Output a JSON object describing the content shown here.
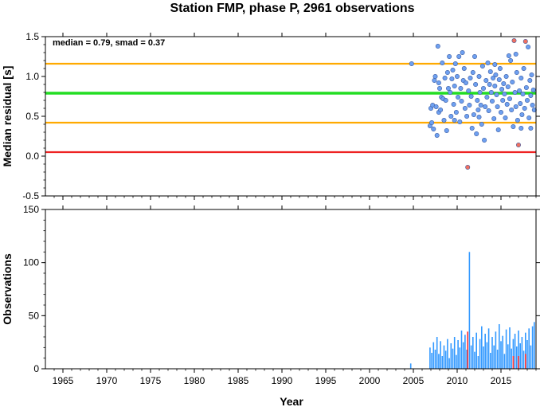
{
  "title": "Station FMP, phase P, 2961 observations",
  "colors": {
    "normal_point": "#6ea0f0",
    "outlier_point": "#f07060",
    "median_line": "#22dd22",
    "smad_line": "#ffaa00",
    "zero_line": "#ee2222",
    "bar": "#3399ff",
    "bar_highlight": "#ff3333"
  },
  "chart_data": [
    {
      "type": "scatter",
      "ylabel": "Median residual [s]",
      "annotation": "median = 0.79, smad = 0.37",
      "xlim": [
        1963,
        2019
      ],
      "ylim": [
        -0.5,
        1.5
      ],
      "yticks": [
        "-0.5",
        "0.0",
        "0.5",
        "1.0",
        "1.5"
      ],
      "hlines": [
        {
          "y": 1.16,
          "role": "upper-smad"
        },
        {
          "y": 0.79,
          "role": "median"
        },
        {
          "y": 0.42,
          "role": "lower-smad"
        },
        {
          "y": 0.05,
          "role": "zero"
        }
      ],
      "points": [
        {
          "x": 2004.8,
          "y": 1.16
        },
        {
          "x": 2006.9,
          "y": 0.38
        },
        {
          "x": 2007.0,
          "y": 0.6
        },
        {
          "x": 2007.1,
          "y": 0.42
        },
        {
          "x": 2007.2,
          "y": 0.64
        },
        {
          "x": 2007.3,
          "y": 0.34
        },
        {
          "x": 2007.4,
          "y": 0.95
        },
        {
          "x": 2007.5,
          "y": 1.0
        },
        {
          "x": 2007.6,
          "y": 0.62
        },
        {
          "x": 2007.7,
          "y": 0.26
        },
        {
          "x": 2007.8,
          "y": 1.38
        },
        {
          "x": 2007.9,
          "y": 0.55
        },
        {
          "x": 2008.0,
          "y": 0.85
        },
        {
          "x": 2008.1,
          "y": 0.58
        },
        {
          "x": 2008.2,
          "y": 0.74
        },
        {
          "x": 2008.3,
          "y": 1.17
        },
        {
          "x": 2008.4,
          "y": 0.72
        },
        {
          "x": 2008.5,
          "y": 0.45
        },
        {
          "x": 2008.6,
          "y": 0.98
        },
        {
          "x": 2008.7,
          "y": 0.7
        },
        {
          "x": 2008.8,
          "y": 0.32
        },
        {
          "x": 2008.9,
          "y": 1.05
        },
        {
          "x": 2009.0,
          "y": 0.85
        },
        {
          "x": 2009.1,
          "y": 1.25
        },
        {
          "x": 2009.2,
          "y": 0.8
        },
        {
          "x": 2009.3,
          "y": 0.5
        },
        {
          "x": 2009.4,
          "y": 0.97
        },
        {
          "x": 2009.5,
          "y": 1.08
        },
        {
          "x": 2009.6,
          "y": 0.65
        },
        {
          "x": 2009.7,
          "y": 0.88
        },
        {
          "x": 2009.8,
          "y": 1.16
        },
        {
          "x": 2009.9,
          "y": 0.55
        },
        {
          "x": 2010.0,
          "y": 1.0
        },
        {
          "x": 2010.1,
          "y": 0.74
        },
        {
          "x": 2010.2,
          "y": 1.25
        },
        {
          "x": 2010.3,
          "y": 0.43
        },
        {
          "x": 2010.4,
          "y": 0.85
        },
        {
          "x": 2010.5,
          "y": 0.69
        },
        {
          "x": 2010.6,
          "y": 1.3
        },
        {
          "x": 2010.7,
          "y": 0.95
        },
        {
          "x": 2010.8,
          "y": 1.1
        },
        {
          "x": 2010.9,
          "y": 0.6
        },
        {
          "x": 2011.0,
          "y": 0.92
        },
        {
          "x": 2011.1,
          "y": 0.5
        },
        {
          "x": 2011.2,
          "y": -0.14
        },
        {
          "x": 2011.3,
          "y": 0.82
        },
        {
          "x": 2011.4,
          "y": 0.64
        },
        {
          "x": 2011.5,
          "y": 0.98
        },
        {
          "x": 2011.6,
          "y": 0.75
        },
        {
          "x": 2011.7,
          "y": 0.35
        },
        {
          "x": 2011.8,
          "y": 1.05
        },
        {
          "x": 2011.9,
          "y": 0.52
        },
        {
          "x": 2012.0,
          "y": 1.25
        },
        {
          "x": 2012.1,
          "y": 0.9
        },
        {
          "x": 2012.2,
          "y": 0.28
        },
        {
          "x": 2012.3,
          "y": 0.7
        },
        {
          "x": 2012.4,
          "y": 0.58
        },
        {
          "x": 2012.5,
          "y": 1.0
        },
        {
          "x": 2012.6,
          "y": 0.8
        },
        {
          "x": 2012.7,
          "y": 0.64
        },
        {
          "x": 2012.8,
          "y": 0.4
        },
        {
          "x": 2012.9,
          "y": 1.13
        },
        {
          "x": 2013.0,
          "y": 0.85
        },
        {
          "x": 2013.1,
          "y": 0.2
        },
        {
          "x": 2013.2,
          "y": 0.62
        },
        {
          "x": 2013.3,
          "y": 0.95
        },
        {
          "x": 2013.4,
          "y": 0.74
        },
        {
          "x": 2013.5,
          "y": 1.17
        },
        {
          "x": 2013.6,
          "y": 0.57
        },
        {
          "x": 2013.7,
          "y": 0.9
        },
        {
          "x": 2013.8,
          "y": 1.06
        },
        {
          "x": 2013.9,
          "y": 0.8
        },
        {
          "x": 2014.0,
          "y": 0.69
        },
        {
          "x": 2014.1,
          "y": 0.98
        },
        {
          "x": 2014.2,
          "y": 0.47
        },
        {
          "x": 2014.3,
          "y": 0.88
        },
        {
          "x": 2014.4,
          "y": 1.02
        },
        {
          "x": 2014.5,
          "y": 0.77
        },
        {
          "x": 2014.6,
          "y": 0.62
        },
        {
          "x": 2014.7,
          "y": 0.33
        },
        {
          "x": 2014.8,
          "y": 0.96
        },
        {
          "x": 2014.9,
          "y": 1.1
        },
        {
          "x": 2015.0,
          "y": 0.55
        },
        {
          "x": 2015.1,
          "y": 0.84
        },
        {
          "x": 2015.2,
          "y": 0.7
        },
        {
          "x": 2015.3,
          "y": 0.91
        },
        {
          "x": 2015.4,
          "y": 0.78
        },
        {
          "x": 2015.5,
          "y": 0.48
        },
        {
          "x": 2015.6,
          "y": 1.0
        },
        {
          "x": 2015.7,
          "y": 0.65
        },
        {
          "x": 2015.8,
          "y": 0.87
        },
        {
          "x": 2015.9,
          "y": 1.26
        },
        {
          "x": 2016.0,
          "y": 0.72
        },
        {
          "x": 2016.1,
          "y": 1.2
        },
        {
          "x": 2016.2,
          "y": 0.58
        },
        {
          "x": 2016.3,
          "y": 0.93
        },
        {
          "x": 2016.4,
          "y": 0.37
        },
        {
          "x": 2016.5,
          "y": 1.45
        },
        {
          "x": 2016.6,
          "y": 0.8
        },
        {
          "x": 2016.7,
          "y": 0.62
        },
        {
          "x": 2016.8,
          "y": 1.05
        },
        {
          "x": 2016.9,
          "y": 0.45
        },
        {
          "x": 2017.0,
          "y": 0.14
        },
        {
          "x": 2017.1,
          "y": 0.82
        },
        {
          "x": 2017.2,
          "y": 0.66
        },
        {
          "x": 2017.3,
          "y": 0.98
        },
        {
          "x": 2017.4,
          "y": 0.52
        },
        {
          "x": 2017.5,
          "y": 0.78
        },
        {
          "x": 2017.6,
          "y": 1.1
        },
        {
          "x": 2017.7,
          "y": 0.6
        },
        {
          "x": 2017.8,
          "y": 1.44
        },
        {
          "x": 2017.9,
          "y": 0.86
        },
        {
          "x": 2018.0,
          "y": 0.7
        },
        {
          "x": 2018.1,
          "y": 1.37
        },
        {
          "x": 2018.2,
          "y": 0.48
        },
        {
          "x": 2018.3,
          "y": 0.95
        },
        {
          "x": 2018.4,
          "y": 0.76
        },
        {
          "x": 2018.5,
          "y": 1.02
        },
        {
          "x": 2018.6,
          "y": 0.64
        },
        {
          "x": 2018.7,
          "y": 0.83
        },
        {
          "x": 2018.8,
          "y": 0.58
        },
        {
          "x": 2007.9,
          "y": 0.92
        },
        {
          "x": 2009.7,
          "y": 0.45
        },
        {
          "x": 2012.5,
          "y": 0.49
        },
        {
          "x": 2014.3,
          "y": 1.15
        },
        {
          "x": 2016.7,
          "y": 1.28
        },
        {
          "x": 2017.3,
          "y": 0.35
        },
        {
          "x": 2018.4,
          "y": 0.35
        }
      ],
      "outliers": [
        {
          "x": 2011.2,
          "y": -0.14
        },
        {
          "x": 2016.5,
          "y": 1.45
        },
        {
          "x": 2017.0,
          "y": 0.14
        },
        {
          "x": 2017.8,
          "y": 1.44
        }
      ]
    },
    {
      "type": "bar",
      "ylabel": "Observations",
      "xlabel": "Year",
      "xlim": [
        1963,
        2019
      ],
      "ylim": [
        0,
        150
      ],
      "xticks": [
        "1965",
        "1970",
        "1975",
        "1980",
        "1985",
        "1990",
        "1995",
        "2000",
        "2005",
        "2010",
        "2015"
      ],
      "yticks": [
        "0",
        "50",
        "100",
        "150"
      ],
      "bars": [
        {
          "x": 2004.7,
          "h": 5
        },
        {
          "x": 2006.9,
          "h": 20
        },
        {
          "x": 2007.1,
          "h": 15
        },
        {
          "x": 2007.3,
          "h": 25
        },
        {
          "x": 2007.5,
          "h": 18
        },
        {
          "x": 2007.7,
          "h": 30
        },
        {
          "x": 2007.9,
          "h": 14
        },
        {
          "x": 2008.1,
          "h": 26
        },
        {
          "x": 2008.3,
          "h": 12
        },
        {
          "x": 2008.5,
          "h": 22
        },
        {
          "x": 2008.7,
          "h": 17
        },
        {
          "x": 2008.9,
          "h": 28
        },
        {
          "x": 2009.1,
          "h": 10
        },
        {
          "x": 2009.3,
          "h": 24
        },
        {
          "x": 2009.5,
          "h": 19
        },
        {
          "x": 2009.7,
          "h": 30
        },
        {
          "x": 2009.9,
          "h": 13
        },
        {
          "x": 2010.1,
          "h": 27
        },
        {
          "x": 2010.3,
          "h": 20
        },
        {
          "x": 2010.5,
          "h": 36
        },
        {
          "x": 2010.7,
          "h": 25
        },
        {
          "x": 2010.9,
          "h": 32
        },
        {
          "x": 2011.1,
          "h": 18
        },
        {
          "x": 2011.4,
          "h": 110
        },
        {
          "x": 2011.6,
          "h": 22
        },
        {
          "x": 2011.8,
          "h": 30
        },
        {
          "x": 2012.0,
          "h": 16
        },
        {
          "x": 2012.2,
          "h": 34
        },
        {
          "x": 2012.4,
          "h": 12
        },
        {
          "x": 2012.6,
          "h": 28
        },
        {
          "x": 2012.8,
          "h": 40
        },
        {
          "x": 2013.0,
          "h": 21
        },
        {
          "x": 2013.2,
          "h": 33
        },
        {
          "x": 2013.4,
          "h": 25
        },
        {
          "x": 2013.6,
          "h": 38
        },
        {
          "x": 2013.8,
          "h": 15
        },
        {
          "x": 2014.0,
          "h": 30
        },
        {
          "x": 2014.2,
          "h": 22
        },
        {
          "x": 2014.4,
          "h": 35
        },
        {
          "x": 2014.6,
          "h": 18
        },
        {
          "x": 2014.8,
          "h": 42
        },
        {
          "x": 2015.0,
          "h": 26
        },
        {
          "x": 2015.2,
          "h": 31
        },
        {
          "x": 2015.4,
          "h": 14
        },
        {
          "x": 2015.6,
          "h": 37
        },
        {
          "x": 2015.8,
          "h": 23
        },
        {
          "x": 2016.0,
          "h": 39
        },
        {
          "x": 2016.2,
          "h": 19
        },
        {
          "x": 2016.4,
          "h": 28
        },
        {
          "x": 2016.6,
          "h": 33
        },
        {
          "x": 2016.8,
          "h": 21
        },
        {
          "x": 2017.0,
          "h": 36
        },
        {
          "x": 2017.2,
          "h": 24
        },
        {
          "x": 2017.4,
          "h": 30
        },
        {
          "x": 2017.6,
          "h": 17
        },
        {
          "x": 2017.8,
          "h": 34
        },
        {
          "x": 2018.0,
          "h": 27
        },
        {
          "x": 2018.2,
          "h": 38
        },
        {
          "x": 2018.4,
          "h": 22
        },
        {
          "x": 2018.6,
          "h": 40
        },
        {
          "x": 2018.8,
          "h": 44
        }
      ],
      "red_bars": [
        {
          "x": 2011.2,
          "h": 35
        },
        {
          "x": 2016.4,
          "h": 12
        },
        {
          "x": 2017.0,
          "h": 12
        },
        {
          "x": 2017.8,
          "h": 14
        }
      ]
    }
  ]
}
